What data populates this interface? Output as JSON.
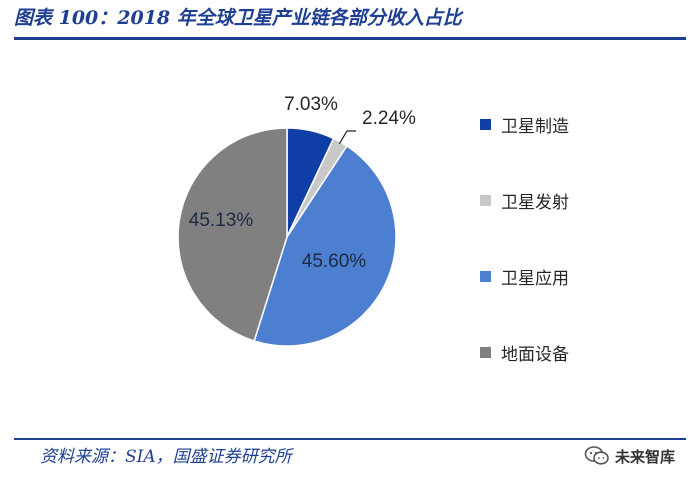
{
  "header": {
    "title": "图表 100：2018 年全球卫星产业链各部分收入占比"
  },
  "footer": {
    "source": "资料来源：SIA，国盛证券研究所"
  },
  "watermark": {
    "text": "未来智库",
    "icon": "wechat-icon"
  },
  "chart_data": {
    "type": "pie",
    "title": "图表 100：2018 年全球卫星产业链各部分收入占比",
    "start_angle": "top",
    "direction": "clockwise",
    "legend_position": "right",
    "slices": [
      {
        "label": "卫星制造",
        "value": 7.03,
        "display": "7.03%",
        "color": "#0f3fa6"
      },
      {
        "label": "卫星发射",
        "value": 2.24,
        "display": "2.24%",
        "color": "#c8c8c8"
      },
      {
        "label": "卫星应用",
        "value": 45.6,
        "display": "45.60%",
        "color": "#4d7fd0"
      },
      {
        "label": "地面设备",
        "value": 45.13,
        "display": "45.13%",
        "color": "#808080"
      }
    ]
  }
}
